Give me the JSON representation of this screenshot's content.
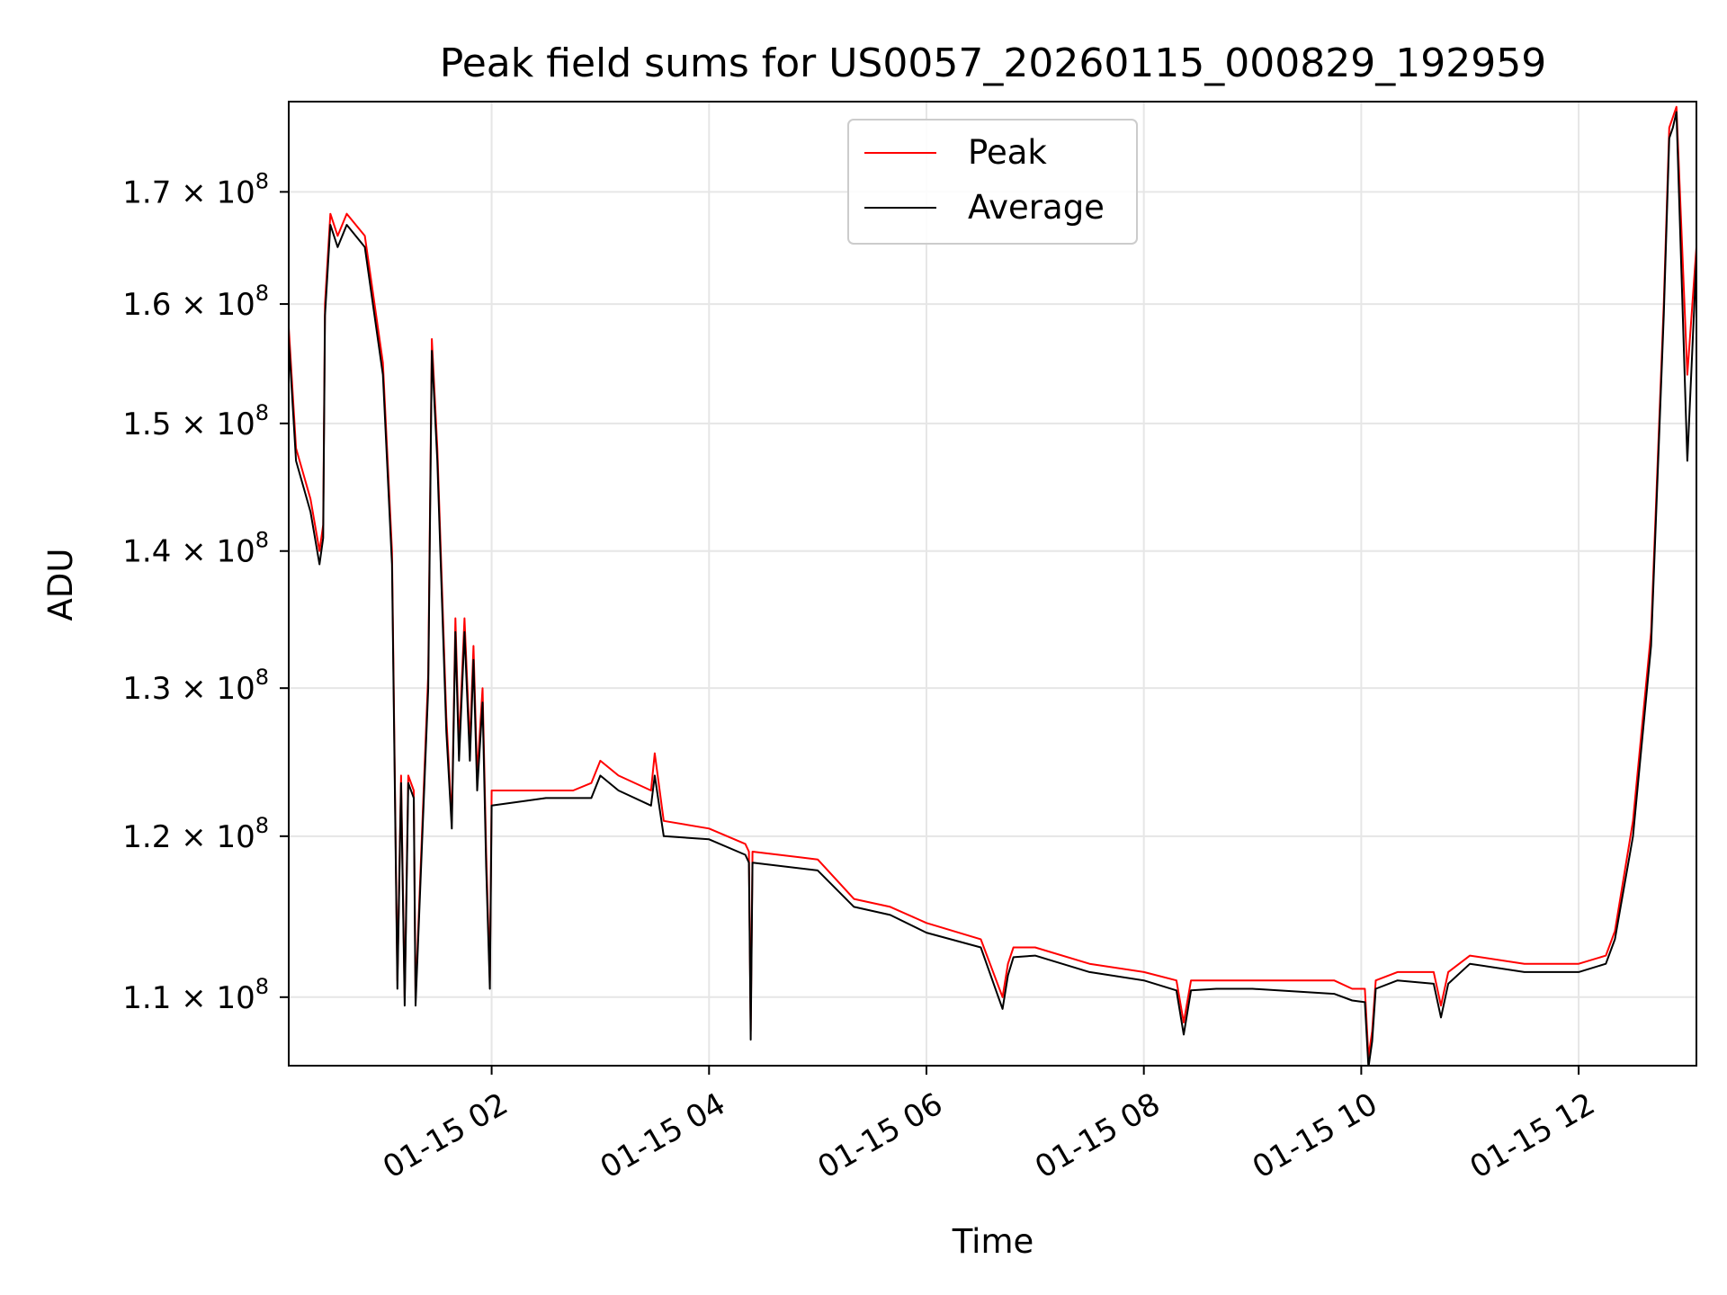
{
  "chart_data": {
    "type": "line",
    "title": "Peak field sums for US0057_20260115_000829_192959",
    "xlabel": "Time",
    "ylabel": "ADU",
    "yscale": "log",
    "xlim": [
      "01-15 00:08",
      "01-15 13:05"
    ],
    "ylim": [
      106000000,
      178500000
    ],
    "x_ticks": [
      "01-15 02",
      "01-15 04",
      "01-15 06",
      "01-15 08",
      "01-15 10",
      "01-15 12"
    ],
    "y_ticks": [
      {
        "value": 110000000,
        "mantissa": "1.1",
        "exponent": "8"
      },
      {
        "value": 120000000,
        "mantissa": "1.2",
        "exponent": "8"
      },
      {
        "value": 130000000,
        "mantissa": "1.3",
        "exponent": "8"
      },
      {
        "value": 140000000,
        "mantissa": "1.4",
        "exponent": "8"
      },
      {
        "value": 150000000,
        "mantissa": "1.5",
        "exponent": "8"
      },
      {
        "value": 160000000,
        "mantissa": "1.6",
        "exponent": "8"
      },
      {
        "value": 170000000,
        "mantissa": "1.7",
        "exponent": "8"
      }
    ],
    "grid": true,
    "legend": "upper center",
    "x": [
      "01-15 00:08",
      "01-15 00:12",
      "01-15 00:20",
      "01-15 00:25",
      "01-15 00:27",
      "01-15 00:28",
      "01-15 00:31",
      "01-15 00:35",
      "01-15 00:40",
      "01-15 00:50",
      "01-15 01:00",
      "01-15 01:05",
      "01-15 01:08",
      "01-15 01:10",
      "01-15 01:12",
      "01-15 01:14",
      "01-15 01:17",
      "01-15 01:18",
      "01-15 01:25",
      "01-15 01:27",
      "01-15 01:30",
      "01-15 01:35",
      "01-15 01:38",
      "01-15 01:40",
      "01-15 01:42",
      "01-15 01:45",
      "01-15 01:48",
      "01-15 01:50",
      "01-15 01:52",
      "01-15 01:55",
      "01-15 01:57",
      "01-15 01:59",
      "01-15 02:00",
      "01-15 02:30",
      "01-15 02:45",
      "01-15 02:55",
      "01-15 03:00",
      "01-15 03:10",
      "01-15 03:28",
      "01-15 03:30",
      "01-15 03:35",
      "01-15 04:00",
      "01-15 04:20",
      "01-15 04:22",
      "01-15 04:23",
      "01-15 04:24",
      "01-15 05:00",
      "01-15 05:20",
      "01-15 05:40",
      "01-15 06:00",
      "01-15 06:30",
      "01-15 06:42",
      "01-15 06:45",
      "01-15 06:48",
      "01-15 07:00",
      "01-15 07:30",
      "01-15 08:00",
      "01-15 08:18",
      "01-15 08:22",
      "01-15 08:26",
      "01-15 08:40",
      "01-15 09:00",
      "01-15 09:30",
      "01-15 09:45",
      "01-15 09:55",
      "01-15 10:02",
      "01-15 10:04",
      "01-15 10:06",
      "01-15 10:08",
      "01-15 10:20",
      "01-15 10:40",
      "01-15 10:44",
      "01-15 10:48",
      "01-15 11:00",
      "01-15 11:30",
      "01-15 12:00",
      "01-15 12:15",
      "01-15 12:20",
      "01-15 12:30",
      "01-15 12:40",
      "01-15 12:47",
      "01-15 12:50",
      "01-15 12:52",
      "01-15 12:54",
      "01-15 13:00",
      "01-15 13:05"
    ],
    "series": [
      {
        "name": "Peak",
        "color": "#ff0000",
        "values": [
          158000000,
          148000000,
          144000000,
          140000000,
          142000000,
          160000000,
          168000000,
          166000000,
          168000000,
          166000000,
          155000000,
          140000000,
          111000000,
          124000000,
          110000000,
          124000000,
          123000000,
          110000000,
          131000000,
          157000000,
          148000000,
          128000000,
          121000000,
          135000000,
          126000000,
          135000000,
          126000000,
          133000000,
          124000000,
          130000000,
          119000000,
          111000000,
          123000000,
          123000000,
          123000000,
          123500000,
          125000000,
          124000000,
          123000000,
          125500000,
          121000000,
          120500000,
          119500000,
          119000000,
          108000000,
          119000000,
          118500000,
          116000000,
          115500000,
          114500000,
          113500000,
          110000000,
          112000000,
          113000000,
          113000000,
          112000000,
          111500000,
          111000000,
          108500000,
          111000000,
          111000000,
          111000000,
          111000000,
          111000000,
          110500000,
          110500000,
          106500000,
          108000000,
          111000000,
          111500000,
          111500000,
          109500000,
          111500000,
          112500000,
          112000000,
          112000000,
          112500000,
          114000000,
          121000000,
          134000000,
          160000000,
          176000000,
          177000000,
          178000000,
          154000000,
          165000000
        ]
      },
      {
        "name": "Average",
        "color": "#000000",
        "values": [
          157000000,
          147000000,
          143000000,
          139000000,
          141000000,
          159000000,
          167000000,
          165000000,
          167000000,
          165000000,
          154000000,
          139000000,
          110500000,
          123500000,
          109500000,
          123500000,
          122500000,
          109500000,
          130000000,
          156000000,
          147000000,
          127000000,
          120500000,
          134000000,
          125000000,
          134000000,
          125000000,
          132000000,
          123000000,
          129000000,
          118000000,
          110500000,
          122000000,
          122500000,
          122500000,
          122500000,
          124000000,
          123000000,
          122000000,
          124000000,
          120000000,
          119800000,
          118800000,
          118300000,
          107500000,
          118300000,
          117800000,
          115500000,
          115000000,
          113900000,
          113000000,
          109300000,
          111300000,
          112400000,
          112500000,
          111500000,
          111000000,
          110400000,
          107800000,
          110400000,
          110500000,
          110500000,
          110300000,
          110200000,
          109800000,
          109700000,
          105900000,
          107400000,
          110500000,
          111000000,
          110800000,
          108800000,
          110800000,
          112000000,
          111500000,
          111500000,
          112000000,
          113500000,
          120000000,
          133000000,
          159000000,
          175000000,
          176000000,
          177500000,
          147000000,
          164000000
        ]
      }
    ]
  }
}
